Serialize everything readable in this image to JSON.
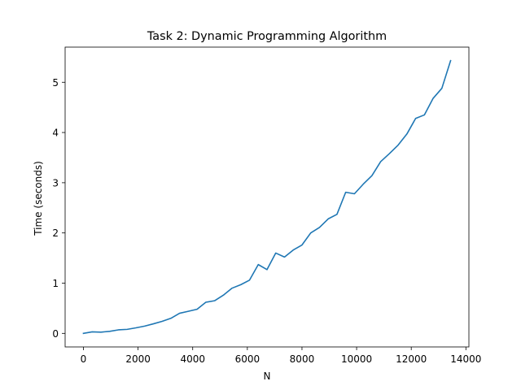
{
  "chart_data": {
    "type": "line",
    "title": "Task 2: Dynamic Programming Algorithm",
    "xlabel": "N",
    "ylabel": "Time (seconds)",
    "xlim": [
      -670,
      14110
    ],
    "ylim": [
      -0.27,
      5.7
    ],
    "xticks": [
      0,
      2000,
      4000,
      6000,
      8000,
      10000,
      12000,
      14000
    ],
    "yticks": [
      0,
      1,
      2,
      3,
      4,
      5
    ],
    "grid": false,
    "line_color": "#1f77b4",
    "series": [
      {
        "x": [
          0,
          320,
          640,
          960,
          1280,
          1600,
          1920,
          2240,
          2560,
          2880,
          3200,
          3520,
          3840,
          4160,
          4480,
          4800,
          5120,
          5440,
          5760,
          6080,
          6400,
          6720,
          7040,
          7360,
          7680,
          8000,
          8320,
          8640,
          8960,
          9280,
          9600,
          9920,
          10240,
          10560,
          10880,
          11200,
          11520,
          11840,
          12160,
          12480,
          12800,
          13120,
          13440
        ],
        "y": [
          0.0,
          0.03,
          0.025,
          0.04,
          0.07,
          0.08,
          0.11,
          0.145,
          0.19,
          0.24,
          0.3,
          0.4,
          0.44,
          0.48,
          0.62,
          0.65,
          0.76,
          0.9,
          0.97,
          1.06,
          1.37,
          1.27,
          1.6,
          1.52,
          1.66,
          1.76,
          2.0,
          2.11,
          2.28,
          2.37,
          2.81,
          2.78,
          2.97,
          3.14,
          3.42,
          3.58,
          3.75,
          3.97,
          4.28,
          4.35,
          4.68,
          4.88,
          5.43
        ]
      }
    ]
  }
}
